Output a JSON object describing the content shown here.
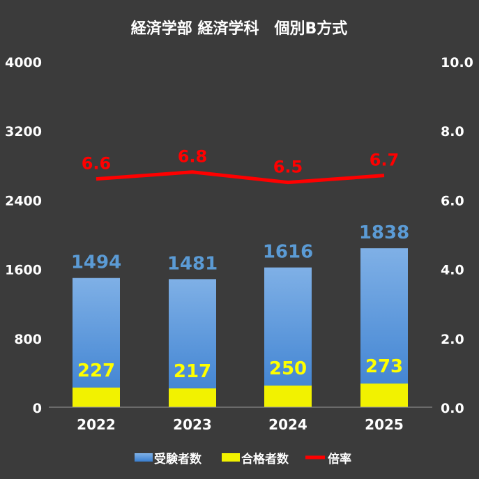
{
  "chart_data": {
    "type": "bar",
    "title": "経済学部 経済学科　個別B方式",
    "categories": [
      "2022",
      "2023",
      "2024",
      "2025"
    ],
    "series": [
      {
        "name": "受験者数",
        "type": "bar",
        "axis": "left",
        "values": [
          1494,
          1481,
          1616,
          1838
        ]
      },
      {
        "name": "合格者数",
        "type": "bar",
        "axis": "left",
        "values": [
          227,
          217,
          250,
          273
        ]
      },
      {
        "name": "倍率",
        "type": "line",
        "axis": "right",
        "values": [
          6.6,
          6.8,
          6.5,
          6.7
        ]
      }
    ],
    "y_left": {
      "range": [
        0,
        4000
      ],
      "ticks": [
        "0",
        "800",
        "1600",
        "2400",
        "3200",
        "4000"
      ]
    },
    "y_right": {
      "range": [
        0,
        10
      ],
      "ticks": [
        "0.0",
        "2.0",
        "4.0",
        "6.0",
        "8.0",
        "10.0"
      ]
    },
    "grid": false,
    "legend": "bottom"
  },
  "colors": {
    "background": "#3b3b3b",
    "applicants_top": "#7fb0e6",
    "applicants_bottom": "#3a7fd0",
    "passed": "#f2f200",
    "ratio": "#ff0000",
    "axis_text": "#ffffff",
    "applicant_label": "#5b9bd5",
    "passed_label": "#ffff00",
    "ratio_label": "#ff0000"
  }
}
